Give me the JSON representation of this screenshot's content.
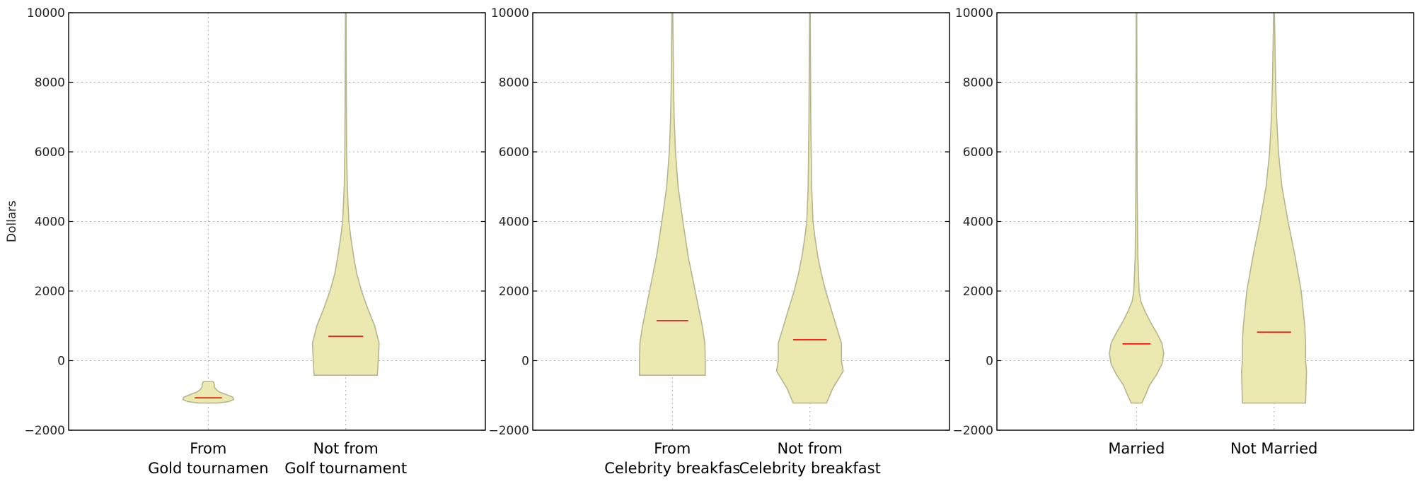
{
  "chart_data": [
    {
      "type": "violin",
      "ylabel": "Dollars",
      "ylim": [
        -2000,
        10000
      ],
      "yticks": [
        -2000,
        0,
        2000,
        4000,
        6000,
        8000,
        10000
      ],
      "grid": true,
      "categories": [
        {
          "label_line1": "From",
          "label_line2": "Gold tournamen",
          "median": -1070,
          "min": -1220,
          "max": -600,
          "profile": [
            [
              -1220,
              0.22
            ],
            [
              -1180,
              0.46
            ],
            [
              -1120,
              0.58
            ],
            [
              -1050,
              0.56
            ],
            [
              -980,
              0.42
            ],
            [
              -900,
              0.25
            ],
            [
              -830,
              0.18
            ],
            [
              -760,
              0.14
            ],
            [
              -680,
              0.14
            ],
            [
              -620,
              0.12
            ],
            [
              -600,
              0.1
            ]
          ]
        },
        {
          "label_line1": "Not from",
          "label_line2": "Golf tournament",
          "median": 700,
          "min": -420,
          "max": 10000,
          "profile": [
            [
              -420,
              0.72
            ],
            [
              0,
              0.74
            ],
            [
              500,
              0.76
            ],
            [
              1000,
              0.66
            ],
            [
              1500,
              0.5
            ],
            [
              2000,
              0.36
            ],
            [
              2500,
              0.25
            ],
            [
              3000,
              0.18
            ],
            [
              3500,
              0.12
            ],
            [
              4000,
              0.07
            ],
            [
              5000,
              0.035
            ],
            [
              6000,
              0.02
            ],
            [
              8000,
              0.012
            ],
            [
              10000,
              0.008
            ]
          ]
        }
      ]
    },
    {
      "type": "violin",
      "ylim": [
        -2000,
        10000
      ],
      "yticks": [
        -2000,
        0,
        2000,
        4000,
        6000,
        8000,
        10000
      ],
      "grid": true,
      "categories": [
        {
          "label_line1": "From",
          "label_line2": "Celebrity breakfas",
          "median": 1150,
          "min": -420,
          "max": 10000,
          "profile": [
            [
              -420,
              0.75
            ],
            [
              0,
              0.75
            ],
            [
              500,
              0.74
            ],
            [
              1000,
              0.68
            ],
            [
              1500,
              0.6
            ],
            [
              2000,
              0.52
            ],
            [
              2500,
              0.44
            ],
            [
              3000,
              0.36
            ],
            [
              3500,
              0.3
            ],
            [
              4000,
              0.24
            ],
            [
              5000,
              0.13
            ],
            [
              6000,
              0.07
            ],
            [
              7000,
              0.04
            ],
            [
              8000,
              0.025
            ],
            [
              10000,
              0.01
            ]
          ]
        },
        {
          "label_line1": "Not  from",
          "label_line2": "Celebrity breakfast",
          "median": 600,
          "min": -1220,
          "max": 10000,
          "profile": [
            [
              -1220,
              0.38
            ],
            [
              -800,
              0.52
            ],
            [
              -300,
              0.76
            ],
            [
              0,
              0.72
            ],
            [
              500,
              0.72
            ],
            [
              1000,
              0.6
            ],
            [
              1500,
              0.48
            ],
            [
              2000,
              0.36
            ],
            [
              2500,
              0.26
            ],
            [
              3000,
              0.18
            ],
            [
              3500,
              0.12
            ],
            [
              4000,
              0.07
            ],
            [
              5000,
              0.04
            ],
            [
              7000,
              0.02
            ],
            [
              10000,
              0.008
            ]
          ]
        }
      ]
    },
    {
      "type": "violin",
      "ylim": [
        -2000,
        10000
      ],
      "yticks": [
        -2000,
        0,
        2000,
        4000,
        6000,
        8000,
        10000
      ],
      "grid": true,
      "categories": [
        {
          "label_line1": "Married",
          "label_line2": "",
          "median": 480,
          "min": -1220,
          "max": 10000,
          "profile": [
            [
              -1220,
              0.12
            ],
            [
              -1000,
              0.2
            ],
            [
              -700,
              0.3
            ],
            [
              -400,
              0.46
            ],
            [
              -100,
              0.58
            ],
            [
              200,
              0.62
            ],
            [
              500,
              0.58
            ],
            [
              800,
              0.46
            ],
            [
              1100,
              0.32
            ],
            [
              1400,
              0.2
            ],
            [
              1700,
              0.1
            ],
            [
              2000,
              0.06
            ],
            [
              3000,
              0.03
            ],
            [
              5000,
              0.015
            ],
            [
              10000,
              0.006
            ]
          ]
        },
        {
          "label_line1": "Not  Married",
          "label_line2": "",
          "median": 820,
          "min": -1220,
          "max": 10000,
          "profile": [
            [
              -1220,
              0.72
            ],
            [
              -300,
              0.74
            ],
            [
              0,
              0.72
            ],
            [
              500,
              0.72
            ],
            [
              1000,
              0.7
            ],
            [
              2000,
              0.62
            ],
            [
              3000,
              0.48
            ],
            [
              4000,
              0.32
            ],
            [
              5000,
              0.18
            ],
            [
              6000,
              0.1
            ],
            [
              7000,
              0.06
            ],
            [
              8000,
              0.035
            ],
            [
              10000,
              0.01
            ]
          ]
        }
      ]
    }
  ],
  "colors": {
    "violin_fill": "#ece9b0",
    "violin_edge": "#b5b590",
    "median": "#ff0000"
  }
}
